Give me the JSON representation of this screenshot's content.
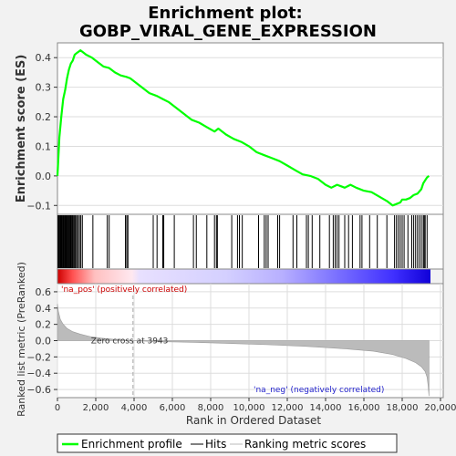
{
  "title_line1": "Enrichment plot:",
  "title_line2": "GOBP_VIRAL_GENE_EXPRESSION",
  "chart_data": [
    {
      "type": "line",
      "panel": "enrichment",
      "ylabel": "Enrichment score (ES)",
      "ylim": [
        -0.13,
        0.45
      ],
      "xlim": [
        0,
        20000
      ],
      "yticks": [
        -0.1,
        0.0,
        0.1,
        0.2,
        0.3,
        0.4
      ],
      "ytick_labels": [
        "−0.1",
        "0.0",
        "0.1",
        "0.2",
        "0.3",
        "0.4"
      ],
      "grid": true,
      "line_color": "#00ff00",
      "series": [
        {
          "x": [
            0,
            100,
            200,
            300,
            400,
            500,
            600,
            700,
            800,
            900,
            1000,
            1100,
            1200,
            1300,
            1500,
            1800,
            2100,
            2400,
            2700,
            3000,
            3300,
            3600,
            3800,
            4000,
            4400,
            4800,
            5200,
            5500,
            5800,
            6200,
            6600,
            7000,
            7400,
            7800,
            8200,
            8400,
            8800,
            9200,
            9600,
            10000,
            10400,
            10800,
            11200,
            11600,
            12000,
            12400,
            12800,
            13200,
            13600,
            14000,
            14300,
            14600,
            14800,
            15000,
            15300,
            15600,
            16000,
            16400,
            16800,
            17200,
            17500,
            17700,
            17900,
            18000,
            18200,
            18400,
            18600,
            18800,
            19000,
            19100,
            19200,
            19300,
            19400
          ],
          "y": [
            0.0,
            0.13,
            0.2,
            0.26,
            0.29,
            0.33,
            0.36,
            0.38,
            0.39,
            0.41,
            0.415,
            0.42,
            0.425,
            0.42,
            0.41,
            0.4,
            0.385,
            0.37,
            0.365,
            0.35,
            0.34,
            0.335,
            0.33,
            0.32,
            0.3,
            0.28,
            0.27,
            0.26,
            0.25,
            0.23,
            0.21,
            0.19,
            0.18,
            0.165,
            0.15,
            0.16,
            0.14,
            0.125,
            0.115,
            0.1,
            0.08,
            0.07,
            0.06,
            0.05,
            0.035,
            0.02,
            0.005,
            0.0,
            -0.01,
            -0.03,
            -0.04,
            -0.03,
            -0.035,
            -0.04,
            -0.03,
            -0.04,
            -0.05,
            -0.055,
            -0.07,
            -0.085,
            -0.1,
            -0.095,
            -0.09,
            -0.08,
            -0.08,
            -0.075,
            -0.065,
            -0.06,
            -0.045,
            -0.025,
            -0.015,
            -0.005,
            0.0
          ]
        }
      ]
    },
    {
      "type": "scatter",
      "panel": "hits",
      "hit_color": "#000000",
      "hit_positions": [
        30,
        70,
        110,
        150,
        190,
        230,
        270,
        310,
        350,
        390,
        430,
        470,
        510,
        550,
        590,
        630,
        670,
        710,
        760,
        800,
        850,
        900,
        950,
        1010,
        1080,
        1150,
        1220,
        1300,
        1850,
        2600,
        2700,
        3550,
        3620,
        3680,
        5000,
        5200,
        5500,
        5550,
        6100,
        7100,
        7250,
        7800,
        8200,
        8300,
        8350,
        9100,
        9400,
        9500,
        9650,
        10500,
        10800,
        10900,
        11000,
        11500,
        11600,
        12300,
        12500,
        13000,
        13100,
        13300,
        13700,
        14200,
        14400,
        14500,
        14600,
        14700,
        15000,
        15200,
        15400,
        15800,
        15900,
        16300,
        16700,
        17200,
        17600,
        17700,
        17800,
        17900,
        18000,
        18100,
        18300,
        18500,
        18600,
        18700,
        18800,
        18900,
        19000,
        19100,
        19150,
        19200,
        19300
      ]
    },
    {
      "type": "heatmap",
      "panel": "rank-colorbar",
      "positive_color": "#ff0000",
      "negative_color": "#0000ff",
      "zero_color": "#ffffff",
      "label_positive": "'na_pos' (positively correlated)",
      "label_negative": "'na_neg' (negatively correlated)"
    },
    {
      "type": "area",
      "panel": "ranked-metric",
      "ylabel": "Ranked list metric (PreRanked)",
      "xlabel": "Rank in Ordered Dataset",
      "ylim": [
        -0.7,
        0.7
      ],
      "xlim": [
        0,
        20000
      ],
      "yticks": [
        -0.6,
        -0.4,
        -0.2,
        0.0,
        0.2,
        0.4,
        0.6
      ],
      "ytick_labels": [
        "−0.6",
        "−0.4",
        "−0.2",
        "0.0",
        "0.2",
        "0.4",
        "0.6"
      ],
      "xticks": [
        0,
        2000,
        4000,
        6000,
        8000,
        10000,
        12000,
        14000,
        16000,
        18000,
        20000
      ],
      "xtick_labels": [
        "0",
        "2,000",
        "4,000",
        "6,000",
        "8,000",
        "10,000",
        "12,000",
        "14,000",
        "16,000",
        "18,000",
        "20,000"
      ],
      "fill_color": "#bbbbbb",
      "zero_cross_rank": 3943,
      "zero_cross_label": "Zero cross at 3943",
      "series": [
        {
          "x": [
            0,
            50,
            150,
            300,
            500,
            800,
            1200,
            1700,
            2300,
            3000,
            3943,
            5000,
            7000,
            9000,
            11000,
            13000,
            15000,
            16500,
            17500,
            18200,
            18700,
            19000,
            19200,
            19300,
            19350,
            19400
          ],
          "y": [
            0.45,
            0.36,
            0.26,
            0.2,
            0.15,
            0.11,
            0.08,
            0.05,
            0.03,
            0.015,
            0.0,
            -0.01,
            -0.02,
            -0.035,
            -0.05,
            -0.07,
            -0.1,
            -0.13,
            -0.17,
            -0.22,
            -0.27,
            -0.32,
            -0.38,
            -0.45,
            -0.55,
            -0.68
          ]
        }
      ]
    }
  ],
  "legend": {
    "items": [
      {
        "label": "Enrichment profile",
        "color": "#00ff00"
      },
      {
        "label": "Hits",
        "color": "#000000"
      },
      {
        "label": "Ranking metric scores",
        "color": "#bbbbbb"
      }
    ]
  }
}
